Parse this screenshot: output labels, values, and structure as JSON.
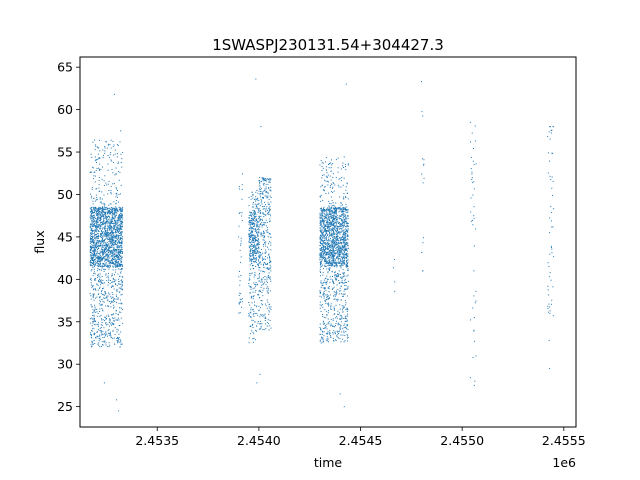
{
  "chart_data": {
    "type": "scatter",
    "title": "1SWASPJ230131.54+304427.3",
    "xlabel": "time",
    "ylabel": "flux",
    "x_offset_label": "1e6",
    "x_scale_factor": 1000000,
    "xlim": [
      2453120,
      2455560
    ],
    "ylim": [
      22.6,
      66.2
    ],
    "x_ticks": [
      2453500,
      2454000,
      2454500,
      2455000,
      2455500
    ],
    "x_tick_labels": [
      "2.4535",
      "2.4540",
      "2.4545",
      "2.4550",
      "2.4555"
    ],
    "y_ticks": [
      25,
      30,
      35,
      40,
      45,
      50,
      55,
      60,
      65
    ],
    "y_tick_labels": [
      "25",
      "30",
      "35",
      "40",
      "45",
      "50",
      "55",
      "60",
      "65"
    ],
    "grid": false,
    "legend": false,
    "marker_color": "#1f77b4",
    "series": [
      {
        "points_description_note": "",
        "clusters": [
          {
            "x_range": [
              2453170,
              2453330
            ],
            "core": [
              41.5,
              48.5
            ],
            "low_tail": [
              32.0,
              41.5
            ],
            "high_tail": [
              48.5,
              56.5
            ],
            "density": 2200,
            "outliers": [
              [
                2453290,
                61.8
              ],
              [
                2453310,
                24.5
              ],
              [
                2453300,
                25.8
              ],
              [
                2453240,
                27.8
              ],
              [
                2453320,
                57.5
              ],
              [
                2453250,
                56.2
              ]
            ]
          },
          {
            "x_range": [
              2453900,
              2453920
            ],
            "core": [
              38.0,
              52.0
            ],
            "low_tail": [
              36.0,
              38.0
            ],
            "high_tail": [
              52.0,
              52.5
            ],
            "density": 40,
            "outliers": []
          },
          {
            "x_range": [
              2453950,
              2454000
            ],
            "core": [
              42.0,
              48.0
            ],
            "low_tail": [
              32.5,
              42.0
            ],
            "high_tail": [
              48.0,
              50.5
            ],
            "density": 450,
            "outliers": [
              [
                2453985,
                63.6
              ],
              [
                2453990,
                27.8
              ],
              [
                2454005,
                28.8
              ]
            ]
          },
          {
            "x_range": [
              2454000,
              2454060
            ],
            "core": [
              40.0,
              51.5
            ],
            "low_tail": [
              34.0,
              40.0
            ],
            "high_tail": [
              51.5,
              52.0
            ],
            "density": 380,
            "outliers": [
              [
                2454010,
                58.0
              ]
            ]
          },
          {
            "x_range": [
              2454300,
              2454440
            ],
            "core": [
              41.5,
              48.5
            ],
            "low_tail": [
              32.5,
              41.5
            ],
            "high_tail": [
              48.5,
              54.5
            ],
            "density": 1800,
            "outliers": [
              [
                2454430,
                63.0
              ],
              [
                2454420,
                25.0
              ],
              [
                2454400,
                26.5
              ]
            ]
          },
          {
            "x_range": [
              2454660,
              2454670
            ],
            "core": [
              36.5,
              43.5
            ],
            "low_tail": [
              36.5,
              36.5
            ],
            "high_tail": [
              43.5,
              43.5
            ],
            "density": 4,
            "outliers": []
          },
          {
            "x_range": [
              2454800,
              2454815
            ],
            "core": [
              41.0,
              60.0
            ],
            "low_tail": [
              41.0,
              41.0
            ],
            "high_tail": [
              60.0,
              63.5
            ],
            "density": 14,
            "outliers": [
              [
                2454800,
                63.3
              ]
            ]
          },
          {
            "x_range": [
              2455040,
              2455070
            ],
            "core": [
              46.5,
              58.5
            ],
            "low_tail": [
              27.5,
              46.5
            ],
            "high_tail": [
              58.5,
              58.5
            ],
            "density": 40,
            "outliers": [
              [
                2455060,
                27.5
              ],
              [
                2455062,
                28.0
              ],
              [
                2455058,
                34.0
              ],
              [
                2455060,
                35.5
              ],
              [
                2455058,
                41.0
              ]
            ]
          },
          {
            "x_range": [
              2455420,
              2455450
            ],
            "core": [
              40.5,
              58.0
            ],
            "low_tail": [
              35.5,
              40.5
            ],
            "high_tail": [
              58.0,
              58.0
            ],
            "density": 55,
            "outliers": [
              [
                2455430,
                29.5
              ],
              [
                2455428,
                32.8
              ]
            ]
          }
        ]
      }
    ]
  }
}
